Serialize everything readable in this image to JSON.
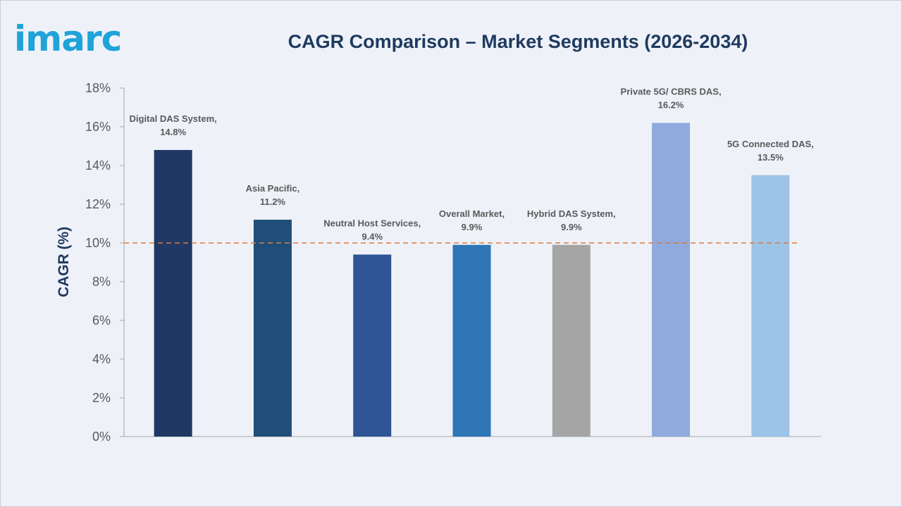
{
  "brand": {
    "logo_text": "imarc",
    "logo_color": "#1fa3d9"
  },
  "chart_data": {
    "type": "bar",
    "title": "CAGR Comparison – Market Segments (2026-2034)",
    "xlabel": "",
    "ylabel": "CAGR (%)",
    "ylim": [
      0,
      18
    ],
    "yticks": [
      0,
      2,
      4,
      6,
      8,
      10,
      12,
      14,
      16,
      18
    ],
    "ytick_format": "{v}%",
    "grid": false,
    "categories": [
      "Digital DAS System",
      "Asia Pacific",
      "Neutral Host Services",
      "Overall Market",
      "Hybrid DAS System",
      "Private 5G/ CBRS DAS",
      "5G Connected DAS"
    ],
    "values": [
      14.8,
      11.2,
      9.4,
      9.9,
      9.9,
      16.2,
      13.5
    ],
    "data_labels": [
      [
        "Digital DAS System,",
        "14.8%"
      ],
      [
        "Asia Pacific,",
        "11.2%"
      ],
      [
        "Neutral Host Services,",
        "9.4%"
      ],
      [
        "Overall Market,",
        "9.9%"
      ],
      [
        "Hybrid DAS System,",
        "9.9%"
      ],
      [
        "Private 5G/ CBRS DAS,",
        "16.2%"
      ],
      [
        "5G Connected DAS,",
        "13.5%"
      ]
    ],
    "colors": [
      "#1f3864",
      "#1f4e79",
      "#2f5597",
      "#2e75b6",
      "#a5a5a5",
      "#8faadc",
      "#9dc3e6"
    ],
    "reference_line": {
      "value": 10,
      "style": "dashed",
      "color": "#e07b39"
    }
  }
}
